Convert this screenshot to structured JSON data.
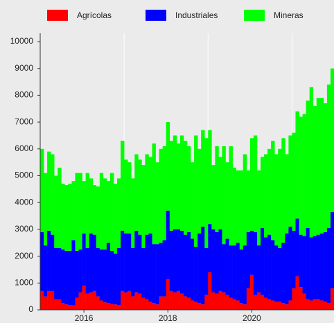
{
  "chart_data": {
    "type": "bar",
    "stacked": true,
    "categories": [
      null,
      null,
      null,
      null,
      null,
      null,
      null,
      null,
      null,
      null,
      null,
      null,
      "2016",
      null,
      null,
      null,
      null,
      null,
      null,
      null,
      null,
      null,
      null,
      null,
      null,
      null,
      null,
      null,
      null,
      null,
      null,
      null,
      null,
      null,
      null,
      null,
      "2018",
      null,
      null,
      null,
      null,
      null,
      null,
      null,
      null,
      null,
      null,
      null,
      null,
      null,
      null,
      null,
      null,
      null,
      null,
      null,
      null,
      null,
      null,
      null,
      "2020",
      null,
      null,
      null,
      null,
      null,
      null,
      null,
      null,
      null,
      null,
      null,
      null,
      null,
      null,
      null,
      null,
      null,
      null,
      null,
      null,
      null,
      null,
      null
    ],
    "series": [
      {
        "name": "Agrícolas",
        "color": "#ff0000",
        "values": [
          700,
          500,
          700,
          700,
          400,
          380,
          250,
          200,
          180,
          170,
          450,
          650,
          900,
          600,
          650,
          700,
          500,
          350,
          280,
          250,
          220,
          200,
          180,
          700,
          650,
          700,
          500,
          650,
          600,
          450,
          400,
          300,
          250,
          200,
          500,
          500,
          1150,
          700,
          650,
          700,
          600,
          500,
          450,
          350,
          300,
          250,
          200,
          550,
          1400,
          650,
          600,
          700,
          650,
          550,
          450,
          400,
          350,
          250,
          200,
          800,
          1300,
          550,
          650,
          550,
          450,
          400,
          350,
          300,
          300,
          250,
          200,
          350,
          800,
          1250,
          850,
          600,
          400,
          350,
          400,
          400,
          350,
          300,
          250,
          800
        ]
      },
      {
        "name": "Industriales",
        "color": "#0000ff",
        "values": [
          2200,
          1900,
          2250,
          2100,
          1900,
          1920,
          2000,
          2000,
          2020,
          2430,
          1750,
          1600,
          1950,
          1700,
          2200,
          2100,
          1800,
          1900,
          1970,
          2250,
          1980,
          1900,
          2120,
          2250,
          2200,
          2150,
          1800,
          2300,
          2200,
          1850,
          2400,
          2550,
          2200,
          2250,
          2000,
          2100,
          2550,
          2250,
          2350,
          2300,
          2350,
          2300,
          2450,
          2300,
          2050,
          2600,
          2900,
          1750,
          1800,
          2350,
          2300,
          2300,
          1800,
          2100,
          1950,
          2000,
          2150,
          2000,
          2200,
          2100,
          1650,
          2350,
          1750,
          2500,
          2250,
          2400,
          2250,
          2100,
          2000,
          2250,
          2650,
          2750,
          2150,
          2150,
          1950,
          2150,
          2650,
          2350,
          2350,
          2400,
          2500,
          2600,
          2800,
          2850
        ]
      },
      {
        "name": "Mineras",
        "color": "#00ff00",
        "values": [
          3100,
          2700,
          2950,
          3000,
          2700,
          3000,
          2450,
          2450,
          2500,
          2200,
          2900,
          2850,
          1950,
          2800,
          2050,
          1850,
          2300,
          2850,
          2650,
          2300,
          2900,
          2600,
          2600,
          3350,
          2750,
          2650,
          2600,
          2850,
          2800,
          3100,
          3000,
          2850,
          3750,
          3050,
          3500,
          3500,
          3300,
          3350,
          3500,
          3200,
          3550,
          3500,
          3200,
          2850,
          4150,
          3150,
          3600,
          4100,
          3500,
          2400,
          3200,
          2700,
          3650,
          2850,
          3700,
          2900,
          2700,
          2950,
          3400,
          2300,
          3450,
          3600,
          2800,
          2650,
          3100,
          3200,
          3700,
          3400,
          3700,
          3900,
          2950,
          3400,
          3650,
          4000,
          4400,
          4550,
          4750,
          5600,
          4850,
          5100,
          5050,
          4800,
          5350,
          5350
        ]
      }
    ],
    "ylim": [
      0,
      10000
    ],
    "yticks": [
      0,
      1000,
      2000,
      3000,
      4000,
      5000,
      6000,
      7000,
      8000,
      9000,
      10000
    ],
    "legend": "top"
  }
}
